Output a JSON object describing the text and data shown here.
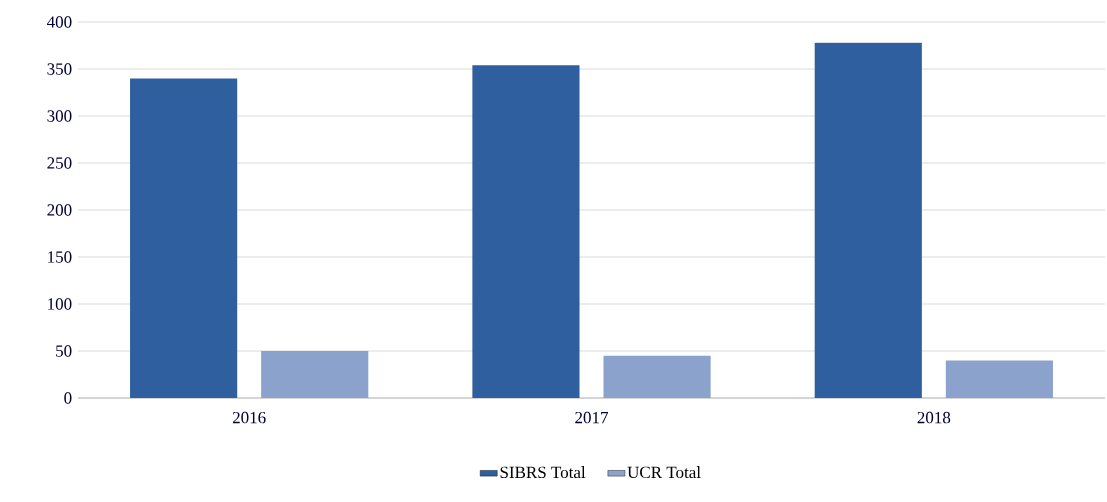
{
  "chart_data": {
    "type": "bar",
    "categories": [
      "2016",
      "2017",
      "2018"
    ],
    "series": [
      {
        "name": "SIBRS Total",
        "color": "#2f5f9f",
        "values": [
          340,
          354,
          378
        ]
      },
      {
        "name": "UCR Total",
        "color": "#8ba2cc",
        "values": [
          50,
          45,
          40
        ]
      }
    ],
    "ylim": [
      0,
      400
    ],
    "yticks": [
      0,
      50,
      100,
      150,
      200,
      250,
      300,
      350,
      400
    ],
    "grid": "y",
    "legend": "bottom"
  }
}
